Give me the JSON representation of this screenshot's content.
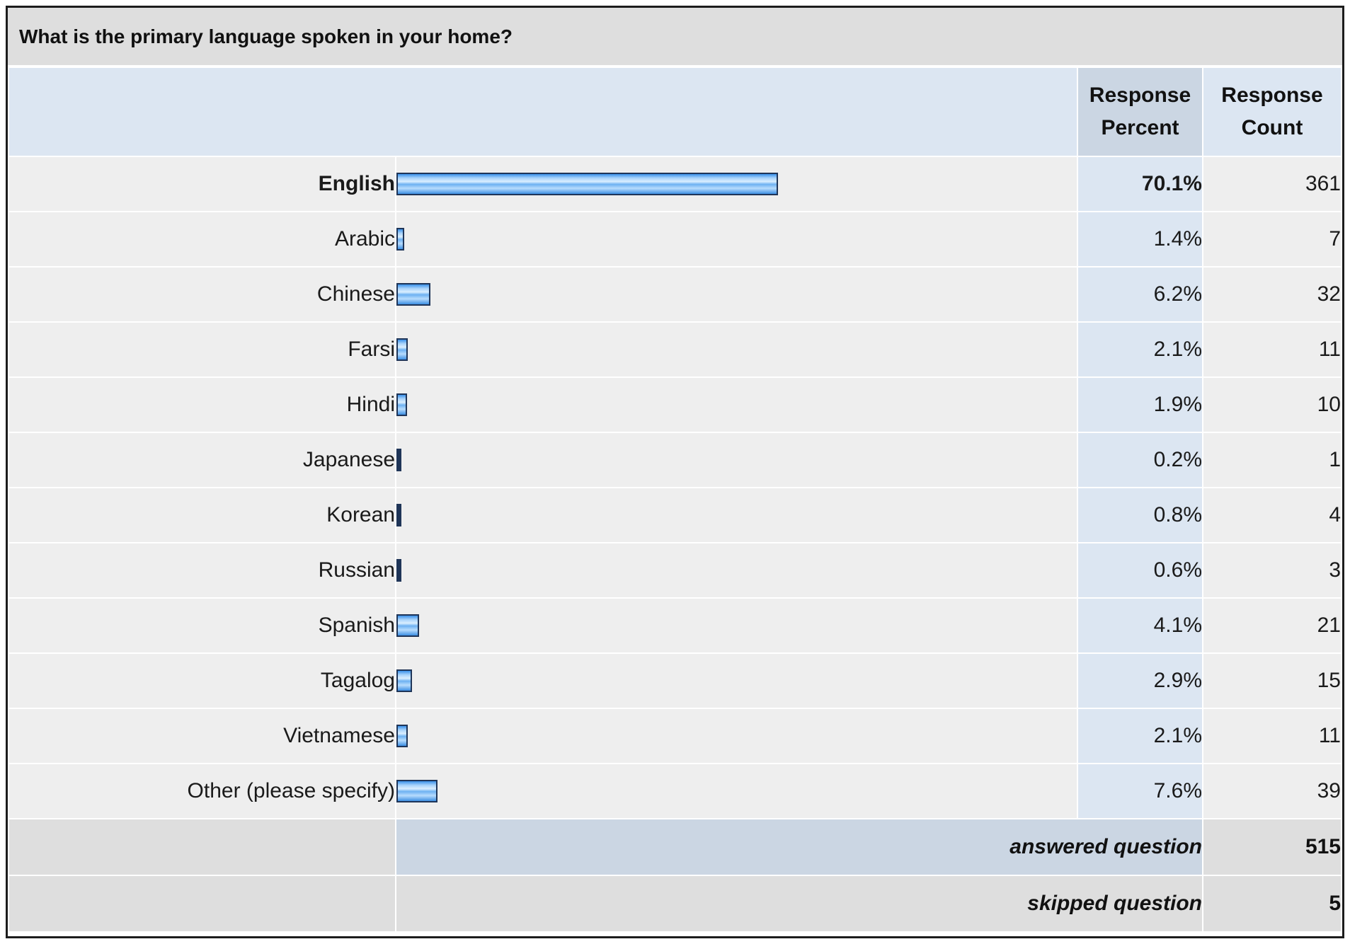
{
  "survey": {
    "question": "What is the primary language spoken in your home?",
    "headers": {
      "percent_line1": "Response",
      "percent_line2": "Percent",
      "count_line1": "Response",
      "count_line2": "Count"
    },
    "rows": [
      {
        "label": "English",
        "percent": "70.1%",
        "count": "361",
        "value": 70.1
      },
      {
        "label": "Arabic",
        "percent": "1.4%",
        "count": "7",
        "value": 1.4
      },
      {
        "label": "Chinese",
        "percent": "6.2%",
        "count": "32",
        "value": 6.2
      },
      {
        "label": "Farsi",
        "percent": "2.1%",
        "count": "11",
        "value": 2.1
      },
      {
        "label": "Hindi",
        "percent": "1.9%",
        "count": "10",
        "value": 1.9
      },
      {
        "label": "Japanese",
        "percent": "0.2%",
        "count": "1",
        "value": 0.2
      },
      {
        "label": "Korean",
        "percent": "0.8%",
        "count": "4",
        "value": 0.8
      },
      {
        "label": "Russian",
        "percent": "0.6%",
        "count": "3",
        "value": 0.6
      },
      {
        "label": "Spanish",
        "percent": "4.1%",
        "count": "21",
        "value": 4.1
      },
      {
        "label": "Tagalog",
        "percent": "2.9%",
        "count": "15",
        "value": 2.9
      },
      {
        "label": "Vietnamese",
        "percent": "2.1%",
        "count": "11",
        "value": 2.1
      },
      {
        "label": "Other (please specify)",
        "percent": "7.6%",
        "count": "39",
        "value": 7.6
      }
    ],
    "answered_label": "answered question",
    "answered_value": "515",
    "skipped_label": "skipped question",
    "skipped_value": "5"
  },
  "colors": {
    "bar_border": "#1f3558",
    "bar_fill": "#6db1f2",
    "header_bg": "#dce6f2",
    "row_bg": "#eeeeee"
  }
}
